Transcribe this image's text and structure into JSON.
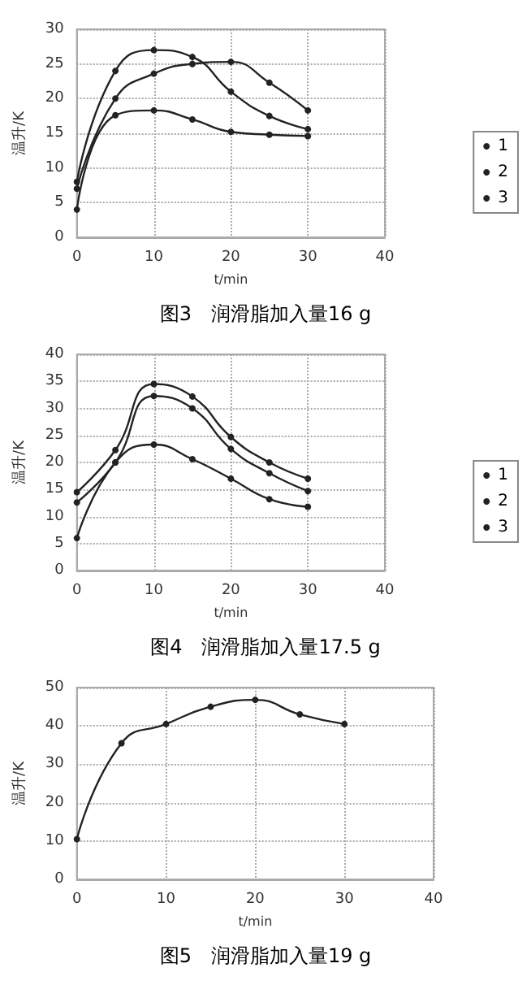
{
  "chart_data": [
    {
      "type": "line",
      "title": "图3　润滑脂加入量16 g",
      "xlabel": "t/min",
      "ylabel": "温升/K",
      "x": [
        0,
        5,
        10,
        15,
        20,
        25,
        30
      ],
      "xlim": [
        0,
        40
      ],
      "xticks": [
        0,
        10,
        20,
        30,
        40
      ],
      "ylim": [
        0,
        30
      ],
      "yticks": [
        0,
        5,
        10,
        15,
        20,
        25,
        30
      ],
      "grid": true,
      "legend": "right",
      "marker": "circle",
      "line_style": "solid",
      "series": [
        {
          "name": "1",
          "color": "#222222",
          "values": [
            8,
            24,
            27,
            26,
            21,
            17.5,
            15.6
          ]
        },
        {
          "name": "2",
          "color": "#222222",
          "values": [
            7,
            20,
            23.6,
            25,
            25.3,
            22.3,
            18.3
          ]
        },
        {
          "name": "3",
          "color": "#222222",
          "values": [
            4,
            17.6,
            18.3,
            17,
            15.2,
            14.8,
            14.6
          ]
        }
      ]
    },
    {
      "type": "line",
      "title": "图4　润滑脂加入量17.5 g",
      "xlabel": "t/min",
      "ylabel": "温升/K",
      "x": [
        0,
        5,
        10,
        15,
        20,
        25,
        30
      ],
      "xlim": [
        0,
        40
      ],
      "xticks": [
        0,
        10,
        20,
        30,
        40
      ],
      "ylim": [
        0,
        40
      ],
      "yticks": [
        0,
        5,
        10,
        15,
        20,
        25,
        30,
        35,
        40
      ],
      "grid": true,
      "legend": "right",
      "marker": "circle",
      "line_style": "solid",
      "series": [
        {
          "name": "1",
          "color": "#222222",
          "values": [
            14.5,
            22.3,
            34.5,
            32.2,
            24.7,
            20,
            17
          ]
        },
        {
          "name": "2",
          "color": "#222222",
          "values": [
            12.6,
            20,
            32.3,
            30,
            22.5,
            18,
            14.7
          ]
        },
        {
          "name": "3",
          "color": "#222222",
          "values": [
            6,
            20,
            23.3,
            20.6,
            17,
            13.2,
            11.8
          ]
        }
      ]
    },
    {
      "type": "line",
      "title": "图5　润滑脂加入量19 g",
      "xlabel": "t/min",
      "ylabel": "温升/K",
      "x": [
        0,
        5,
        10,
        15,
        20,
        25,
        30
      ],
      "xlim": [
        0,
        40
      ],
      "xticks": [
        0,
        10,
        20,
        30,
        40
      ],
      "ylim": [
        0,
        50
      ],
      "yticks": [
        0,
        10,
        20,
        30,
        40,
        50
      ],
      "grid": true,
      "marker": "circle",
      "line_style": "solid",
      "series": [
        {
          "color": "#222222",
          "values": [
            10.5,
            35.5,
            40.5,
            45,
            46.8,
            43,
            40.5
          ]
        }
      ]
    }
  ]
}
